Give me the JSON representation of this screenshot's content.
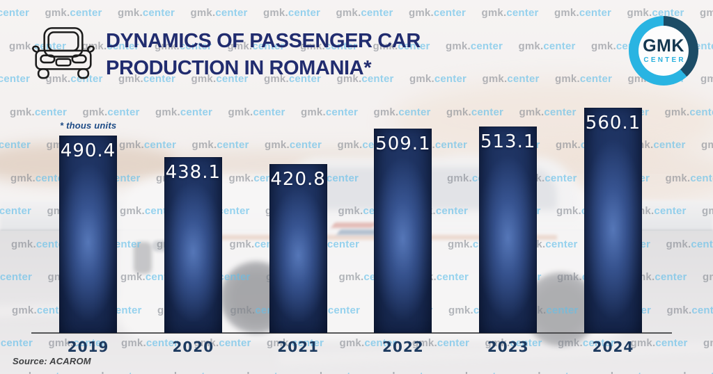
{
  "header": {
    "title_line1": "DYNAMICS OF PASSENGER CAR",
    "title_line2": "PRODUCTION IN ROMANIA*"
  },
  "logo": {
    "name": "GMK",
    "sub": "CENTER",
    "accent_color": "#29b4e2",
    "dark_color": "#1c4c66"
  },
  "watermark": {
    "gray_part": "gmk.",
    "blue_part": "center"
  },
  "chart_data": {
    "type": "bar",
    "title": "Dynamics of passenger car production in Romania",
    "units_note": "* thous units",
    "categories": [
      "2019",
      "2020",
      "2021",
      "2022",
      "2023",
      "2024"
    ],
    "values": [
      490.4,
      438.1,
      420.8,
      509.1,
      513.1,
      560.1
    ],
    "value_labels": [
      "490.4",
      "438.1",
      "420.8",
      "509.1",
      "513.1",
      "560.1"
    ],
    "xlabel": "",
    "ylabel": "thous units",
    "ylim": [
      0,
      580
    ],
    "grid": false,
    "legend": null,
    "bar_color_center": "#3f5fa3",
    "bar_color_edge": "#17294f",
    "value_label_color": "#ffffff",
    "axis_color": "#3b3b3d"
  },
  "footer": {
    "source": "Source: ACAROM"
  }
}
